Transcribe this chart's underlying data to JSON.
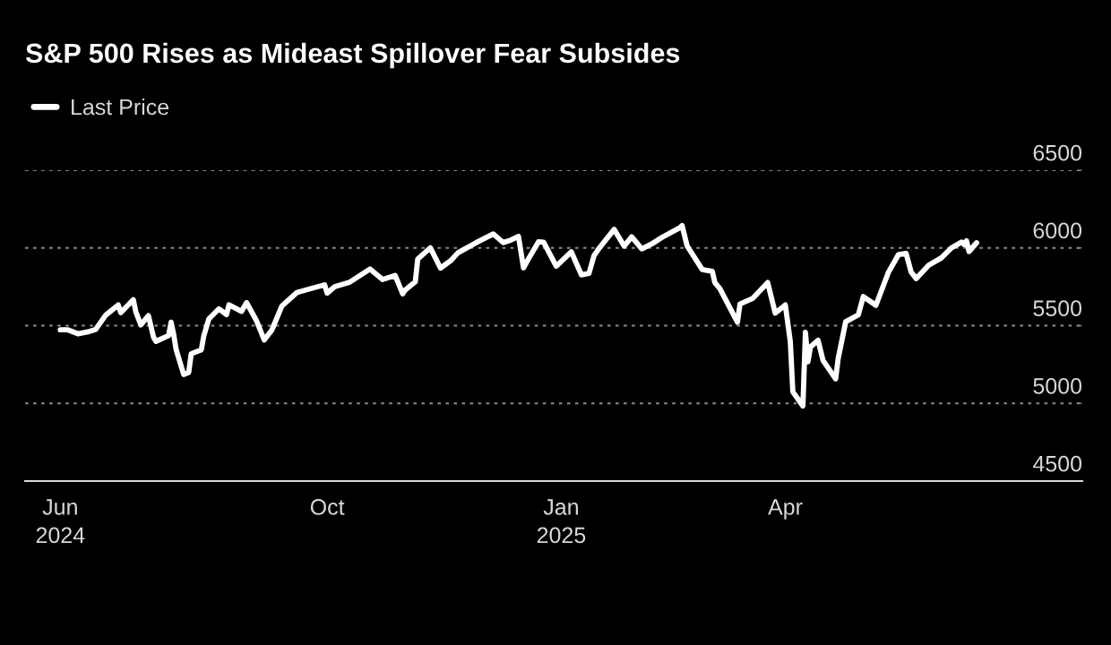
{
  "chart_data": {
    "type": "line",
    "title": "S&P 500 Rises as Mideast Spillover Fear Subsides",
    "x": [
      "2024-06-17",
      "2024-06-20",
      "2024-06-24",
      "2024-06-28",
      "2024-07-01",
      "2024-07-05",
      "2024-07-10",
      "2024-07-11",
      "2024-07-16",
      "2024-07-17",
      "2024-07-19",
      "2024-07-22",
      "2024-07-24",
      "2024-07-25",
      "2024-07-30",
      "2024-07-31",
      "2024-08-01",
      "2024-08-02",
      "2024-08-05",
      "2024-08-07",
      "2024-08-08",
      "2024-08-12",
      "2024-08-13",
      "2024-08-15",
      "2024-08-19",
      "2024-08-22",
      "2024-08-23",
      "2024-08-28",
      "2024-08-30",
      "2024-09-03",
      "2024-09-06",
      "2024-09-09",
      "2024-09-13",
      "2024-09-19",
      "2024-09-26",
      "2024-09-30",
      "2024-10-01",
      "2024-10-04",
      "2024-10-10",
      "2024-10-18",
      "2024-10-23",
      "2024-10-28",
      "2024-10-31",
      "2024-11-01",
      "2024-11-05",
      "2024-11-06",
      "2024-11-11",
      "2024-11-15",
      "2024-11-19",
      "2024-11-22",
      "2024-11-29",
      "2024-12-06",
      "2024-12-10",
      "2024-12-13",
      "2024-12-16",
      "2024-12-18",
      "2024-12-20",
      "2024-12-24",
      "2024-12-26",
      "2024-12-31",
      "2025-01-06",
      "2025-01-10",
      "2025-01-13",
      "2025-01-15",
      "2025-01-17",
      "2025-01-23",
      "2025-01-27",
      "2025-01-30",
      "2025-02-03",
      "2025-02-07",
      "2025-02-11",
      "2025-02-18",
      "2025-02-19",
      "2025-02-21",
      "2025-02-27",
      "2025-03-03",
      "2025-03-04",
      "2025-03-06",
      "2025-03-10",
      "2025-03-13",
      "2025-03-14",
      "2025-03-19",
      "2025-03-25",
      "2025-03-28",
      "2025-04-01",
      "2025-04-03",
      "2025-04-04",
      "2025-04-08",
      "2025-04-09",
      "2025-04-10",
      "2025-04-11",
      "2025-04-14",
      "2025-04-16",
      "2025-04-21",
      "2025-04-22",
      "2025-04-25",
      "2025-04-30",
      "2025-05-02",
      "2025-05-07",
      "2025-05-12",
      "2025-05-16",
      "2025-05-19",
      "2025-05-21",
      "2025-05-23",
      "2025-05-28",
      "2025-06-02",
      "2025-06-06",
      "2025-06-10",
      "2025-06-11",
      "2025-06-12",
      "2025-06-13",
      "2025-06-16"
    ],
    "series": [
      {
        "name": "Last Price",
        "color": "#ffffff",
        "values": [
          5473,
          5473,
          5448,
          5460,
          5475,
          5567,
          5633,
          5584,
          5667,
          5588,
          5505,
          5564,
          5427,
          5399,
          5436,
          5522,
          5446,
          5346,
          5186,
          5199,
          5319,
          5344,
          5434,
          5543,
          5608,
          5571,
          5634,
          5592,
          5648,
          5529,
          5408,
          5471,
          5626,
          5713,
          5745,
          5762,
          5709,
          5751,
          5780,
          5864,
          5797,
          5823,
          5705,
          5729,
          5782,
          5929,
          6001,
          5870,
          5917,
          5969,
          6032,
          6090,
          6034,
          6051,
          6074,
          5872,
          5930,
          6040,
          6037,
          5882,
          5975,
          5827,
          5836,
          5950,
          5997,
          6119,
          6012,
          6071,
          5994,
          6026,
          6068,
          6129,
          6144,
          6013,
          5861,
          5849,
          5778,
          5739,
          5615,
          5522,
          5639,
          5675,
          5777,
          5581,
          5633,
          5397,
          5074,
          4983,
          5457,
          5268,
          5363,
          5406,
          5276,
          5158,
          5287,
          5525,
          5569,
          5687,
          5631,
          5844,
          5958,
          5964,
          5845,
          5803,
          5889,
          5936,
          6000,
          6038,
          6022,
          6045,
          5977,
          6033
        ]
      }
    ],
    "xlim": [
      "2024-06-03",
      "2025-07-28"
    ],
    "xticks": [
      {
        "value": "2024-06-17",
        "label": "Jun\n2024"
      },
      {
        "value": "2024-10-01",
        "label": "Oct"
      },
      {
        "value": "2025-01-02",
        "label": "Jan\n2025"
      },
      {
        "value": "2025-04-01",
        "label": "Apr"
      }
    ],
    "ylim": [
      4500,
      6500
    ],
    "yticks": [
      4500,
      5000,
      5500,
      6000,
      6500
    ],
    "grid": "y",
    "legend": "top left",
    "marker": "none",
    "line_style": "solid"
  }
}
